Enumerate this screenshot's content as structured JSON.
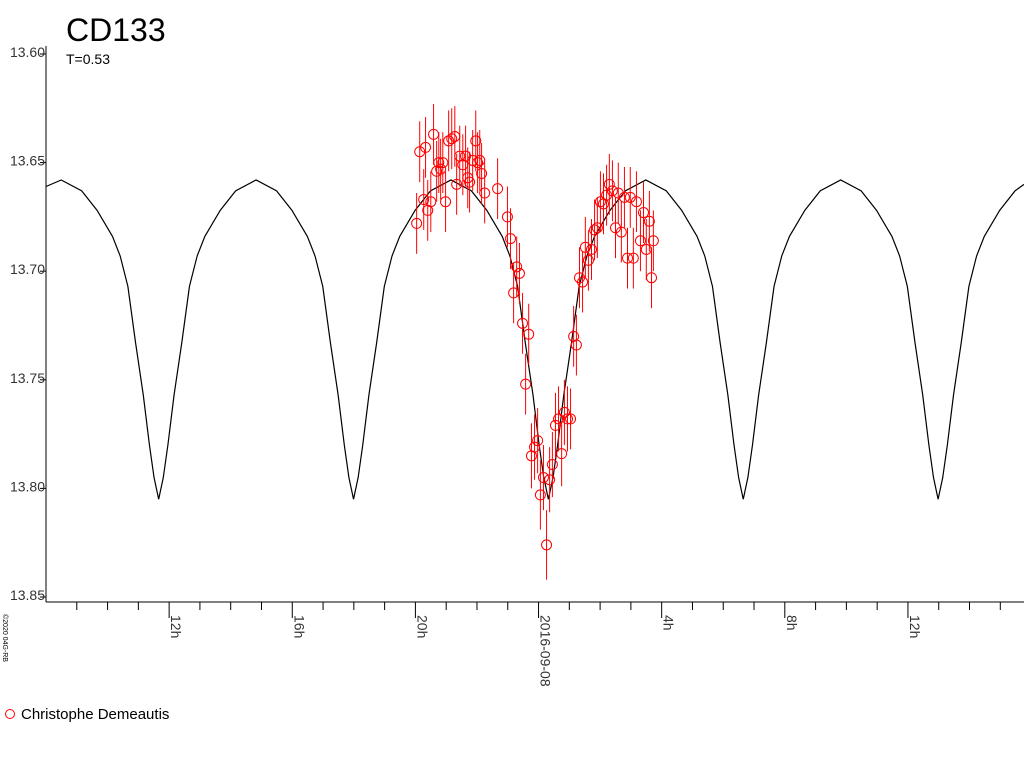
{
  "chart_data": {
    "type": "scatter",
    "title": "CD133",
    "subtitle": "T=0.53",
    "credit": "©2020 04G-RB",
    "xlim": [
      -16,
      15.77
    ],
    "xticks": [
      {
        "value": -12,
        "label": "12h"
      },
      {
        "value": -8,
        "label": "16h"
      },
      {
        "value": -4,
        "label": "20h"
      },
      {
        "value": 0,
        "label": "2016-09-08"
      },
      {
        "value": 4,
        "label": "4h"
      },
      {
        "value": 8,
        "label": "8h"
      },
      {
        "value": 12,
        "label": "12h"
      }
    ],
    "xminorticks": [
      -15,
      -14,
      -13,
      -11,
      -10,
      -9,
      -7,
      -6,
      -5,
      -3,
      -2,
      -1,
      1,
      2,
      3,
      5,
      6,
      7,
      9,
      10,
      11,
      13,
      14,
      15
    ],
    "ylim": [
      13.6,
      13.85
    ],
    "y_inverted": true,
    "yticks": [
      {
        "value": 13.6,
        "label": "13.60"
      },
      13.65,
      {
        "value": 13.7,
        "label": "13.70"
      },
      13.75,
      {
        "value": 13.8,
        "label": "13.80"
      },
      13.85
    ],
    "legend": "bottom-left",
    "series": [
      {
        "type": "line",
        "color": "#000000",
        "x": [
          -16,
          -15.505,
          -14.84,
          -14.34,
          -13.84,
          -13.59,
          -13.34,
          -13.09,
          -12.84,
          -12.64,
          -12.49,
          -12.34,
          -12.19,
          -12.04,
          -11.84,
          -11.59,
          -11.34,
          -11.09,
          -10.84,
          -10.34,
          -9.84,
          -9.175,
          -8.51,
          -8.01,
          -7.51,
          -7.26,
          -7.01,
          -6.76,
          -6.51,
          -6.31,
          -6.16,
          -6.01,
          -5.86,
          -5.71,
          -5.51,
          -5.26,
          -5.01,
          -4.76,
          -4.51,
          -4.01,
          -3.51,
          -2.845,
          -2.18,
          -1.68,
          -1.18,
          -0.93,
          -0.68,
          -0.43,
          -0.18,
          0.02,
          0.17,
          0.32,
          0.47,
          0.62,
          0.82,
          1.07,
          1.32,
          1.57,
          1.82,
          2.32,
          2.82,
          3.485,
          4.15,
          4.65,
          5.15,
          5.4,
          5.65,
          5.9,
          6.15,
          6.35,
          6.5,
          6.65,
          6.8,
          6.95,
          7.15,
          7.4,
          7.65,
          7.9,
          8.15,
          8.65,
          9.15,
          9.815,
          10.48,
          10.98,
          11.48,
          11.73,
          11.98,
          12.23,
          12.48,
          12.68,
          12.83,
          12.98,
          13.13,
          13.28,
          13.48,
          13.73,
          13.98,
          14.23,
          14.48,
          14.98,
          15.48,
          15.77
        ],
        "values": [
          13.661,
          13.658,
          13.663,
          13.672,
          13.684,
          13.693,
          13.707,
          13.733,
          13.757,
          13.78,
          13.795,
          13.805,
          13.795,
          13.78,
          13.757,
          13.733,
          13.707,
          13.693,
          13.684,
          13.672,
          13.663,
          13.658,
          13.663,
          13.672,
          13.684,
          13.693,
          13.707,
          13.733,
          13.757,
          13.78,
          13.795,
          13.805,
          13.795,
          13.78,
          13.757,
          13.733,
          13.707,
          13.693,
          13.684,
          13.672,
          13.663,
          13.658,
          13.663,
          13.672,
          13.684,
          13.693,
          13.707,
          13.733,
          13.757,
          13.78,
          13.795,
          13.805,
          13.795,
          13.78,
          13.757,
          13.733,
          13.707,
          13.693,
          13.684,
          13.672,
          13.663,
          13.658,
          13.663,
          13.672,
          13.684,
          13.693,
          13.707,
          13.733,
          13.757,
          13.78,
          13.795,
          13.805,
          13.795,
          13.78,
          13.757,
          13.733,
          13.707,
          13.693,
          13.684,
          13.672,
          13.663,
          13.658,
          13.663,
          13.672,
          13.684,
          13.693,
          13.707,
          13.733,
          13.757,
          13.78,
          13.795,
          13.805,
          13.795,
          13.78,
          13.757,
          13.733,
          13.707,
          13.693,
          13.684,
          13.672,
          13.663,
          13.66
        ]
      },
      {
        "type": "scatter",
        "name": "Christophe Demeautis",
        "color": "#ff0000",
        "marker": "circle",
        "x": [
          -3.96,
          -3.86,
          -3.73,
          -3.67,
          -3.6,
          -3.5,
          -3.41,
          -3.31,
          -3.24,
          -3.18,
          -3.11,
          -3.02,
          -2.92,
          -2.82,
          -2.72,
          -2.66,
          -2.56,
          -2.46,
          -2.37,
          -2.3,
          -2.24,
          -2.14,
          -2.04,
          -1.98,
          -1.91,
          -1.85,
          -1.75,
          -1.33,
          -1.01,
          -0.91,
          -0.81,
          -0.71,
          -0.62,
          -0.52,
          -0.42,
          -0.32,
          -0.23,
          -0.13,
          -0.03,
          0.06,
          0.16,
          0.26,
          0.36,
          0.45,
          0.55,
          0.65,
          0.75,
          0.84,
          0.94,
          1.04,
          1.14,
          1.23,
          1.33,
          1.43,
          1.52,
          1.62,
          1.72,
          1.82,
          1.91,
          2.01,
          2.11,
          2.21,
          2.3,
          2.4,
          2.5,
          2.59,
          2.69,
          2.79,
          2.89,
          2.98,
          3.08,
          3.18,
          3.31,
          3.41,
          3.5,
          3.6,
          3.67,
          3.73
        ],
        "values": [
          13.678,
          13.645,
          13.667,
          13.643,
          13.672,
          13.668,
          13.637,
          13.654,
          13.65,
          13.653,
          13.65,
          13.668,
          13.64,
          13.639,
          13.638,
          13.66,
          13.647,
          13.651,
          13.647,
          13.657,
          13.659,
          13.649,
          13.64,
          13.65,
          13.649,
          13.655,
          13.664,
          13.662,
          13.675,
          13.685,
          13.71,
          13.698,
          13.701,
          13.724,
          13.752,
          13.729,
          13.785,
          13.781,
          13.778,
          13.803,
          13.795,
          13.826,
          13.796,
          13.789,
          13.771,
          13.768,
          13.784,
          13.765,
          13.768,
          13.768,
          13.73,
          13.734,
          13.703,
          13.705,
          13.689,
          13.695,
          13.69,
          13.681,
          13.68,
          13.668,
          13.669,
          13.665,
          13.66,
          13.663,
          13.68,
          13.664,
          13.682,
          13.666,
          13.694,
          13.666,
          13.694,
          13.668,
          13.686,
          13.673,
          13.69,
          13.677,
          13.703,
          13.686
        ],
        "errors": [
          0.014,
          0.014,
          0.014,
          0.014,
          0.014,
          0.014,
          0.014,
          0.014,
          0.014,
          0.014,
          0.014,
          0.014,
          0.014,
          0.014,
          0.014,
          0.014,
          0.014,
          0.014,
          0.014,
          0.014,
          0.014,
          0.014,
          0.014,
          0.014,
          0.014,
          0.014,
          0.014,
          0.014,
          0.014,
          0.014,
          0.014,
          0.014,
          0.014,
          0.014,
          0.014,
          0.014,
          0.015,
          0.015,
          0.015,
          0.016,
          0.015,
          0.016,
          0.015,
          0.015,
          0.015,
          0.015,
          0.015,
          0.015,
          0.015,
          0.014,
          0.014,
          0.014,
          0.014,
          0.014,
          0.014,
          0.014,
          0.014,
          0.014,
          0.014,
          0.014,
          0.014,
          0.014,
          0.014,
          0.014,
          0.014,
          0.014,
          0.014,
          0.014,
          0.014,
          0.014,
          0.014,
          0.014,
          0.014,
          0.014,
          0.014,
          0.014,
          0.014,
          0.014
        ]
      }
    ]
  }
}
